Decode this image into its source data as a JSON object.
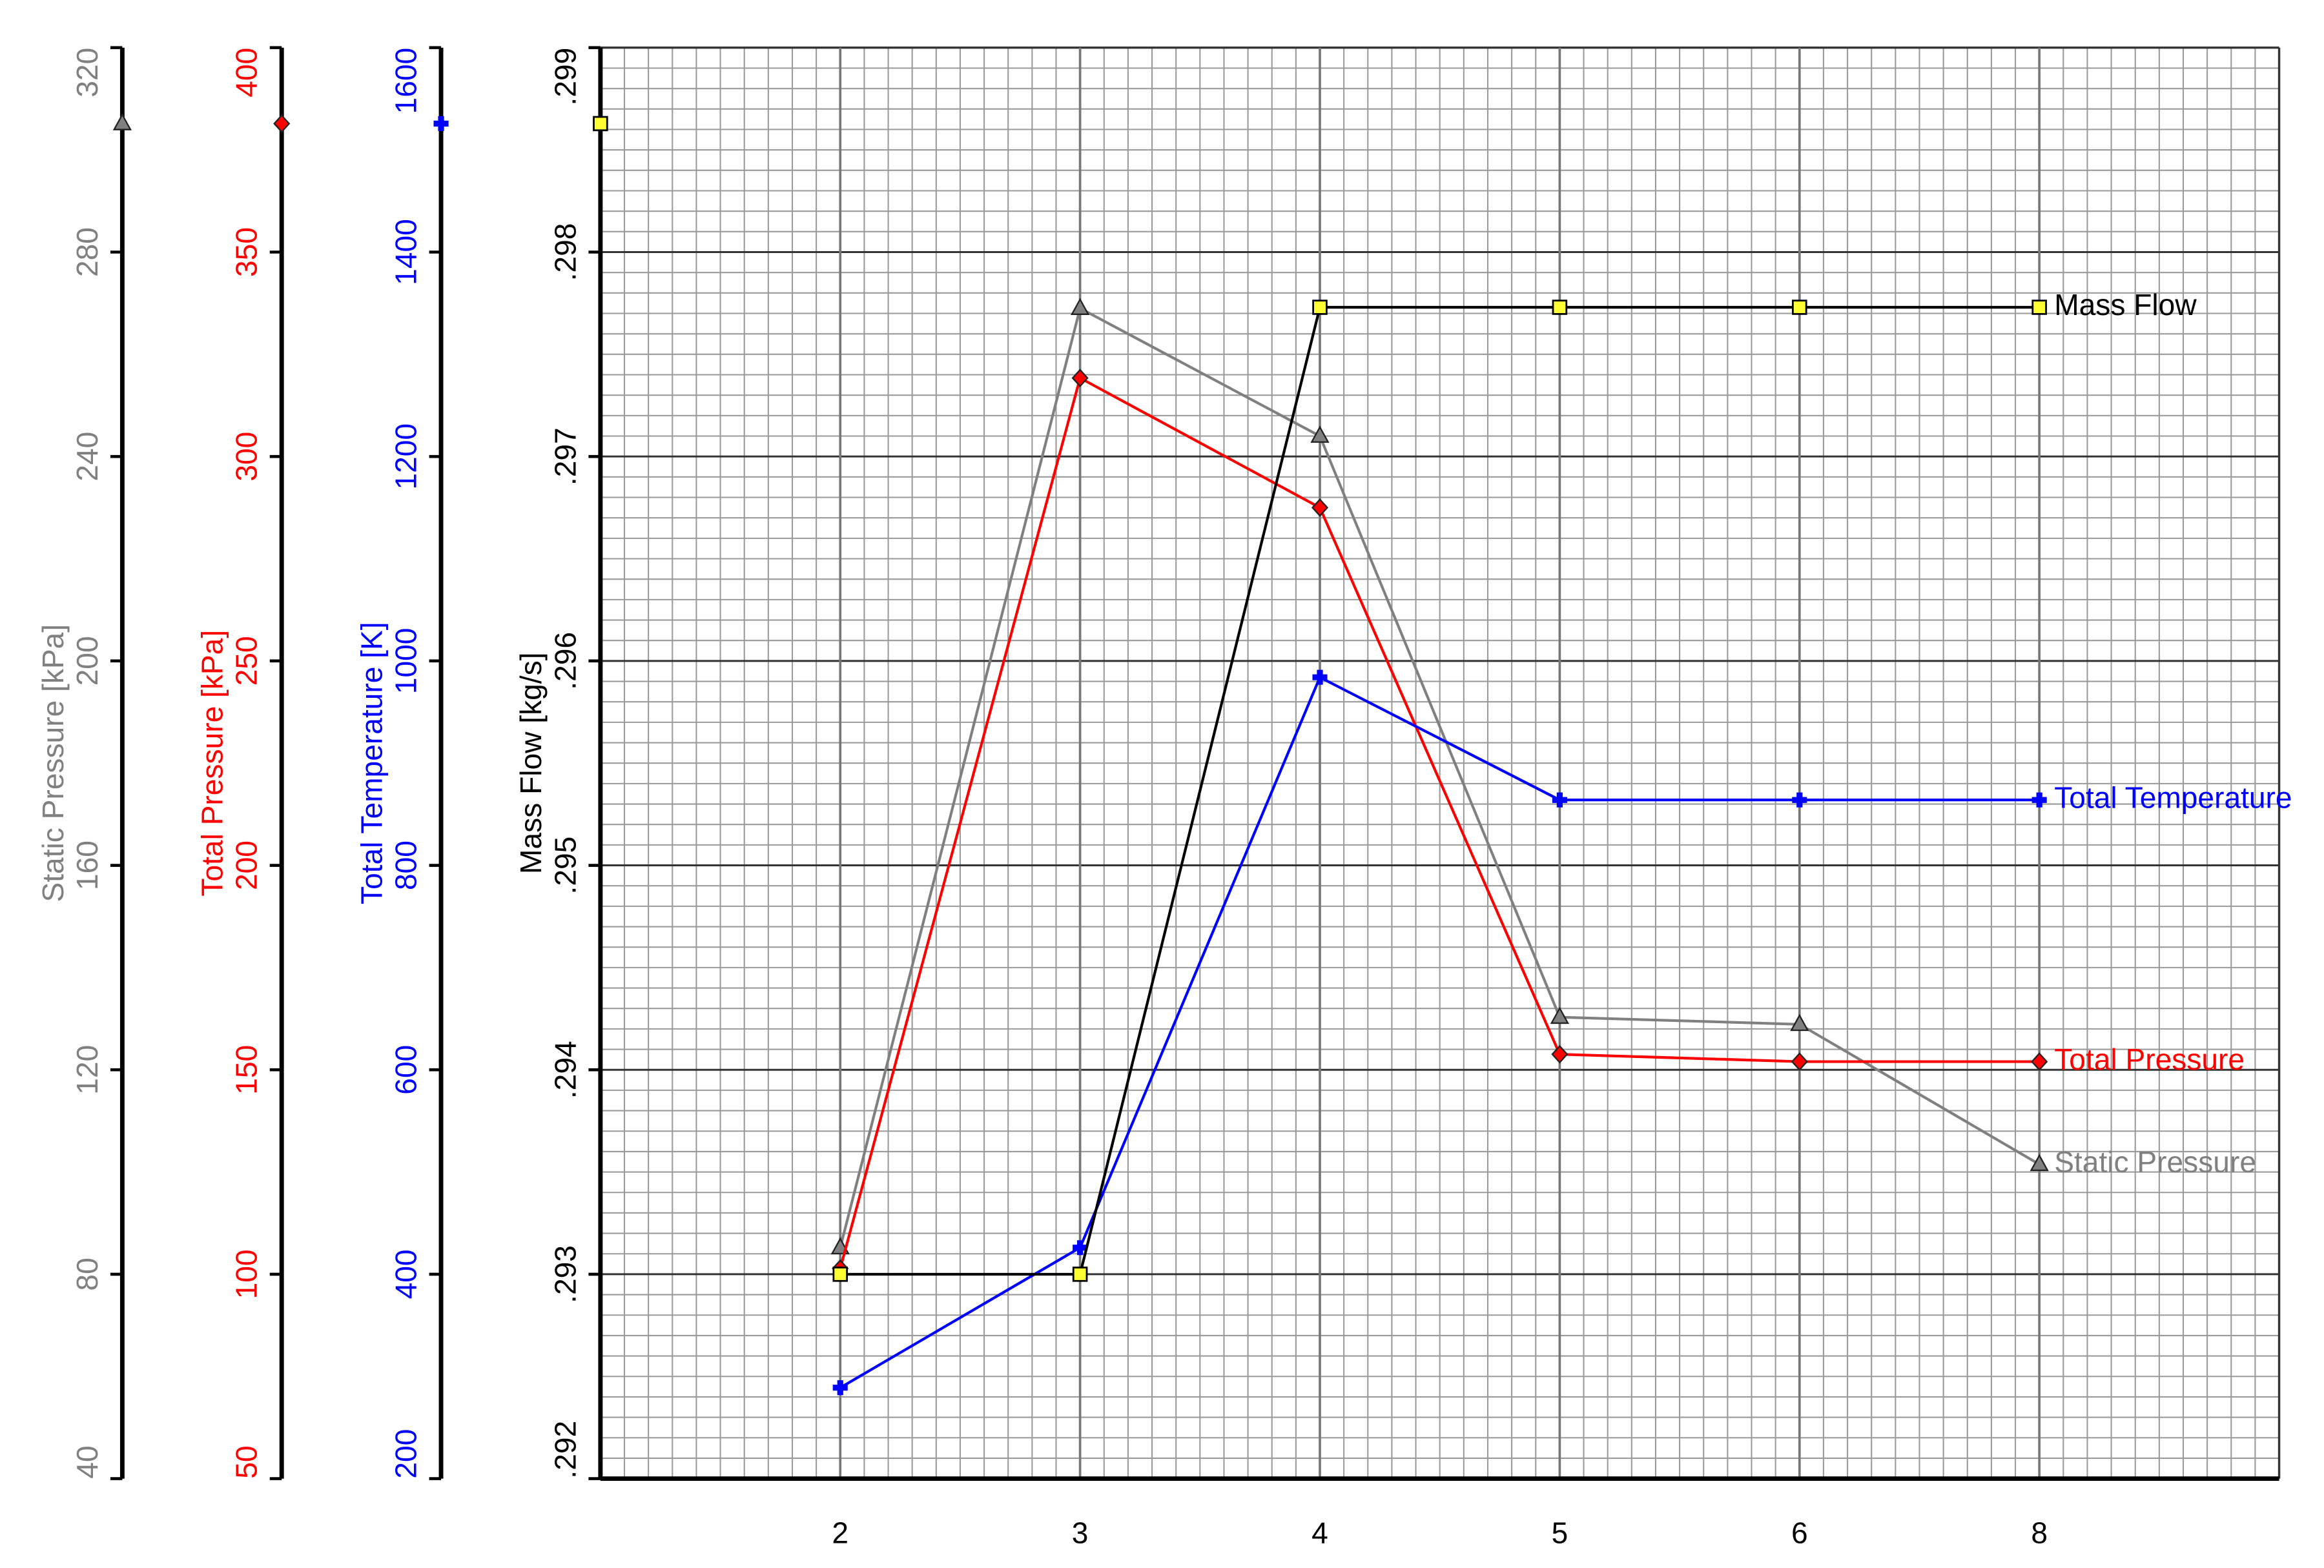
{
  "chart_data": {
    "type": "line",
    "categories": [
      "2",
      "3",
      "4",
      "5",
      "6",
      "8"
    ],
    "grid": true,
    "series": [
      {
        "name": "Mass Flow",
        "color": "#000000",
        "marker": "square",
        "marker_color": "#ffff33",
        "axis_label": "Mass Flow [kg/s]",
        "values": [
          0.293,
          0.293,
          0.29773,
          0.29773,
          0.29773,
          0.29773
        ],
        "ylim": [
          0.292,
          0.299
        ],
        "yticks": [
          {
            "value": 0.292,
            "label": ".292"
          },
          {
            "value": 0.293,
            "label": ".293"
          },
          {
            "value": 0.294,
            "label": ".294"
          },
          {
            "value": 0.295,
            "label": ".295"
          },
          {
            "value": 0.296,
            "label": ".296"
          },
          {
            "value": 0.297,
            "label": ".297"
          },
          {
            "value": 0.298,
            "label": ".298"
          },
          {
            "value": 0.299,
            "label": ".299"
          }
        ]
      },
      {
        "name": "Total Temperature",
        "color": "#0000ff",
        "marker": "plus",
        "marker_color": "#0000ff",
        "axis_label": "Total Temperature [K]",
        "values": [
          289,
          426,
          984,
          864,
          864,
          864
        ],
        "ylim": [
          200,
          1600
        ],
        "yticks": [
          200,
          400,
          600,
          800,
          1000,
          1200,
          1400,
          1600
        ]
      },
      {
        "name": "Total Pressure",
        "color": "#ff0000",
        "marker": "diamond",
        "marker_color": "#ff0000",
        "axis_label": "Total Pressure [kPa]",
        "values": [
          101.4,
          319.2,
          287.5,
          153.8,
          152,
          152
        ],
        "ylim": [
          50,
          400
        ],
        "yticks": [
          50,
          100,
          150,
          200,
          250,
          300,
          350,
          400
        ]
      },
      {
        "name": "Static Pressure",
        "color": "#808080",
        "marker": "triangle",
        "marker_color": "#808080",
        "axis_label": "Static Pressure [kPa]",
        "values": [
          85.2,
          269,
          244,
          130.3,
          128.9,
          101.5
        ],
        "ylim": [
          40,
          320
        ],
        "yticks": [
          40,
          80,
          120,
          160,
          200,
          240,
          280,
          320
        ]
      }
    ]
  }
}
